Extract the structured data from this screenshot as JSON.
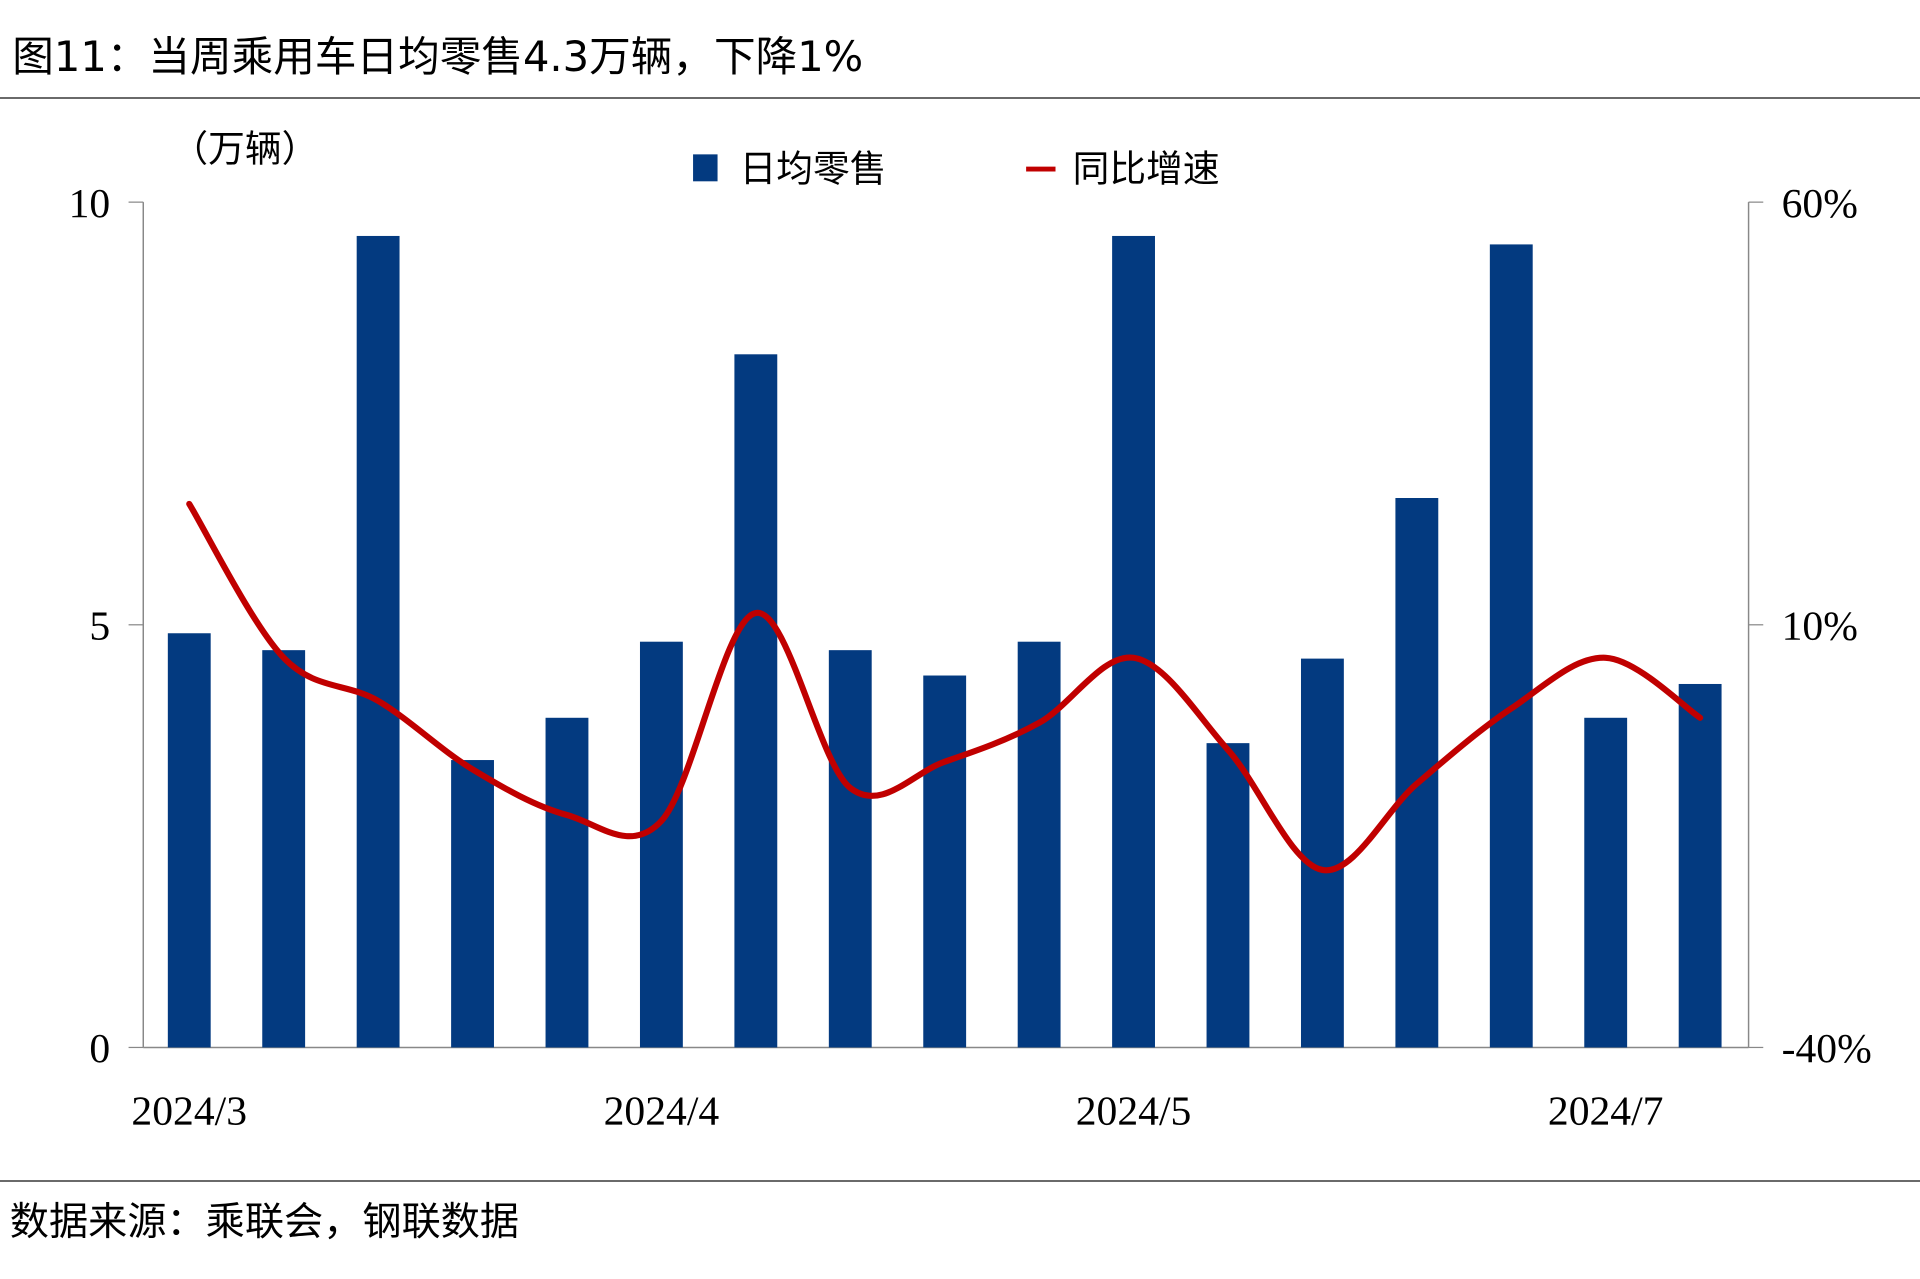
{
  "figure": {
    "title": "图11：当周乘用车日均零售4.3万辆，下降1%",
    "source": "数据来源：乘联会，钢联数据"
  },
  "chart_data": {
    "type": "bar+line",
    "title": "图11：当周乘用车日均零售4.3万辆，下降1%",
    "left_axis_unit": "（万辆）",
    "ylim": [
      0,
      10
    ],
    "y2lim": [
      -40,
      60
    ],
    "yticks": [
      "0",
      "5",
      "10"
    ],
    "y2ticks": [
      "-40%",
      "10%",
      "60%"
    ],
    "xtick_labels": [
      {
        "index": 0,
        "label": "2024/3"
      },
      {
        "index": 5,
        "label": "2024/4"
      },
      {
        "index": 10,
        "label": "2024/5"
      },
      {
        "index": 15,
        "label": "2024/7"
      }
    ],
    "legend_position": "top-center",
    "series": [
      {
        "name": "日均零售",
        "type": "bar",
        "axis": "left",
        "color": "#033a80",
        "values": [
          4.9,
          4.7,
          9.6,
          3.4,
          3.9,
          4.8,
          8.2,
          4.7,
          4.4,
          4.8,
          9.6,
          3.6,
          4.6,
          6.5,
          9.5,
          3.9,
          4.3
        ]
      },
      {
        "name": "同比增速",
        "type": "line",
        "axis": "right",
        "unit": "%",
        "color": "#c00000",
        "values": [
          24.3,
          6.1,
          1.0,
          -7.1,
          -12.5,
          -13.2,
          11.4,
          -9.3,
          -6.2,
          -1.6,
          6.1,
          -4.8,
          -19.0,
          -8.8,
          0.1,
          6.1,
          -1.0
        ]
      }
    ]
  }
}
